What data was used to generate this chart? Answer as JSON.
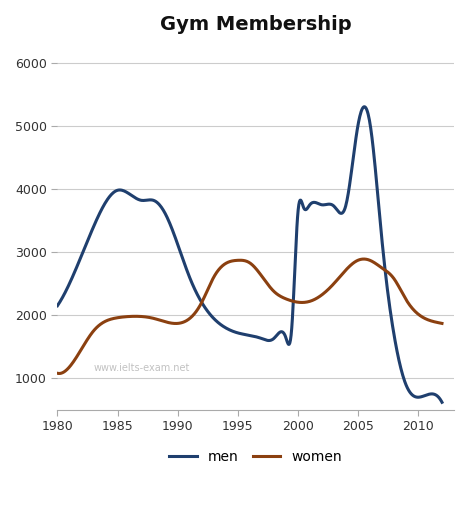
{
  "title": "Gym Membership",
  "title_fontsize": 14,
  "title_fontweight": "bold",
  "xlim": [
    1980,
    2013
  ],
  "ylim": [
    500,
    6300
  ],
  "xticks": [
    1980,
    1985,
    1990,
    1995,
    2000,
    2005,
    2010
  ],
  "yticks": [
    1000,
    2000,
    3000,
    4000,
    5000,
    6000
  ],
  "background_color": "#ffffff",
  "grid_color": "#cccccc",
  "watermark": "www.ielts-exam.net",
  "men_color": "#1f3f6e",
  "women_color": "#8b4010",
  "men_x": [
    1980,
    1981,
    1983,
    1985,
    1987,
    1988,
    1989,
    1991,
    1993,
    1994,
    1995,
    1996,
    1997,
    1998,
    1999,
    1999.5,
    2000,
    2000.5,
    2001,
    2002,
    2003,
    2004,
    2005,
    2006,
    2007,
    2008,
    2009,
    2010,
    2012
  ],
  "men_y": [
    2150,
    2500,
    3400,
    3980,
    3820,
    3820,
    3600,
    2600,
    1950,
    1800,
    1720,
    1680,
    1630,
    1630,
    1650,
    1800,
    3600,
    3700,
    3750,
    3750,
    3730,
    3740,
    5000,
    5050,
    3200,
    1700,
    900,
    700,
    620
  ],
  "women_x": [
    1980,
    1981,
    1983,
    1985,
    1986,
    1988,
    1990,
    1992,
    1993,
    1994,
    1995,
    1996,
    1997,
    1998,
    1999,
    2001,
    2003,
    2005,
    2006,
    2007,
    2008,
    2009,
    2010,
    2012
  ],
  "women_y": [
    1080,
    1180,
    1750,
    1960,
    1980,
    1950,
    1870,
    2200,
    2600,
    2820,
    2870,
    2830,
    2620,
    2380,
    2260,
    2220,
    2500,
    2870,
    2870,
    2750,
    2580,
    2250,
    2020,
    1870
  ],
  "legend_labels": [
    "men",
    "women"
  ],
  "linewidth": 2.2
}
